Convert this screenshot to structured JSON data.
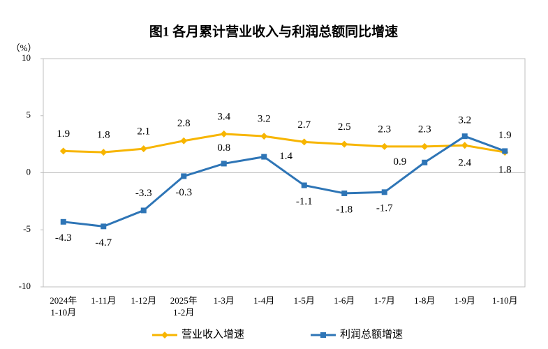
{
  "chart_data": {
    "type": "line",
    "title": "图1  各月累计营业收入与利润总额同比增速",
    "y_unit": "（%）",
    "categories": [
      "2024年\n1-10月",
      "1-11月",
      "1-12月",
      "2025年\n1-2月",
      "1-3月",
      "1-4月",
      "1-5月",
      "1-6月",
      "1-7月",
      "1-8月",
      "1-9月",
      "1-10月"
    ],
    "series": [
      {
        "name": "营业收入增速",
        "color": "#f7b500",
        "marker": "diamond",
        "values": [
          1.9,
          1.8,
          2.1,
          2.8,
          3.4,
          3.2,
          2.7,
          2.5,
          2.3,
          2.3,
          2.4,
          1.8
        ]
      },
      {
        "name": "利润总额增速",
        "color": "#2e75b6",
        "marker": "square",
        "values": [
          -4.3,
          -4.7,
          -3.3,
          -0.3,
          0.8,
          1.4,
          -1.1,
          -1.8,
          -1.7,
          0.9,
          3.2,
          1.9
        ]
      }
    ],
    "ylim": [
      -10,
      10
    ],
    "yticks": [
      -10,
      -5,
      0,
      5,
      10
    ]
  }
}
